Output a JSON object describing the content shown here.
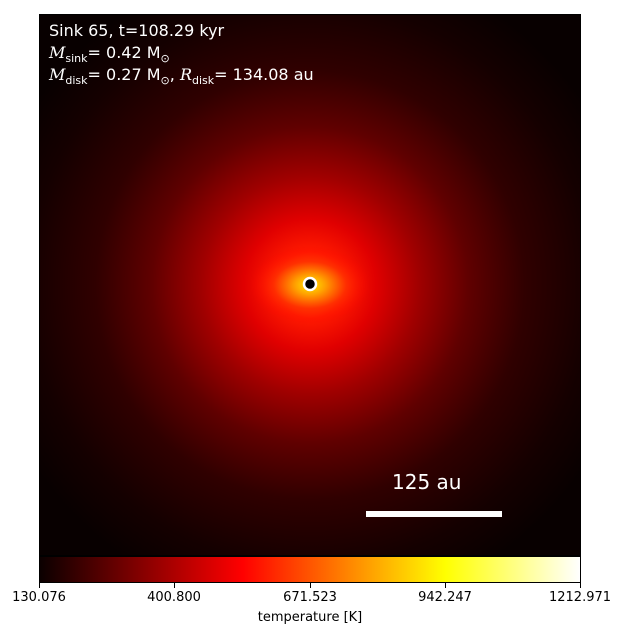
{
  "annotations": {
    "line1": "Sink 65, t=108.29 kyr",
    "msink_sym": "M",
    "msink_sub": "sink",
    "msink_val": "= 0.42 M",
    "msink_unit_sub": "⊙",
    "mdisk_sym": "M",
    "mdisk_sub": "disk",
    "mdisk_val": "= 0.27 M",
    "mdisk_unit_sub": "⊙",
    "rdisk_sym": "R",
    "rdisk_sub": "disk",
    "rdisk_val": "= 134.08 au",
    "separator": ", "
  },
  "scalebar": {
    "label": "125 au"
  },
  "colorbar": {
    "label": "temperature [K]",
    "ticks": [
      "130.076",
      "400.800",
      "671.523",
      "942.247",
      "1212.971"
    ],
    "colormap": "hot"
  },
  "colors": {
    "background_outer": "#0a0000",
    "core_yellow": "#ffe000",
    "sink_marker": "#000000",
    "sink_ring": "#ffffff"
  }
}
